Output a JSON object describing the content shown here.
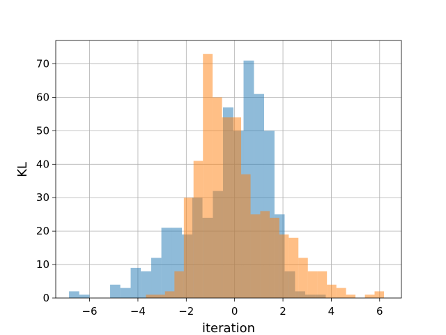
{
  "chart_data": {
    "type": "bar",
    "xlabel": "iteration",
    "ylabel": "KL",
    "xlim": [
      -7.4,
      6.9
    ],
    "ylim": [
      0,
      77
    ],
    "xticks": [
      -6,
      -4,
      -2,
      0,
      2,
      4,
      6
    ],
    "xtick_labels": [
      "−6",
      "−4",
      "−2",
      "0",
      "2",
      "4",
      "6"
    ],
    "yticks": [
      0,
      10,
      20,
      30,
      40,
      50,
      60,
      70
    ],
    "ytick_labels": [
      "0",
      "10",
      "20",
      "30",
      "40",
      "50",
      "60",
      "70"
    ],
    "grid": true,
    "series": [
      {
        "color": "#1f77b4",
        "opacity": 0.5,
        "bins": [
          [
            -6.85,
            -6.43,
            2
          ],
          [
            -6.43,
            -6.0,
            1
          ],
          [
            -5.15,
            -4.73,
            4
          ],
          [
            -4.73,
            -4.3,
            3
          ],
          [
            -4.3,
            -3.88,
            9
          ],
          [
            -3.88,
            -3.45,
            8
          ],
          [
            -3.45,
            -3.03,
            12
          ],
          [
            -3.03,
            -2.6,
            21
          ],
          [
            -2.6,
            -2.18,
            21
          ],
          [
            -2.18,
            -1.75,
            19
          ],
          [
            -1.75,
            -1.33,
            30
          ],
          [
            -1.33,
            -0.9,
            24
          ],
          [
            -0.9,
            -0.48,
            32
          ],
          [
            -0.48,
            -0.05,
            57
          ],
          [
            -0.05,
            0.37,
            50
          ],
          [
            0.37,
            0.8,
            71
          ],
          [
            0.8,
            1.22,
            61
          ],
          [
            1.22,
            1.65,
            50
          ],
          [
            1.65,
            2.07,
            25
          ],
          [
            2.07,
            2.5,
            8
          ],
          [
            2.5,
            2.92,
            2
          ],
          [
            2.92,
            3.35,
            1
          ],
          [
            3.35,
            3.77,
            1
          ]
        ]
      },
      {
        "color": "#ff7f0e",
        "opacity": 0.5,
        "bins": [
          [
            -3.67,
            -3.28,
            1
          ],
          [
            -3.28,
            -2.88,
            1
          ],
          [
            -2.88,
            -2.49,
            2
          ],
          [
            -2.49,
            -2.1,
            8
          ],
          [
            -2.1,
            -1.7,
            30
          ],
          [
            -1.7,
            -1.31,
            41
          ],
          [
            -1.31,
            -0.91,
            73
          ],
          [
            -0.91,
            -0.52,
            60
          ],
          [
            -0.52,
            -0.12,
            54
          ],
          [
            -0.12,
            0.27,
            54
          ],
          [
            0.27,
            0.66,
            37
          ],
          [
            0.66,
            1.06,
            25
          ],
          [
            1.06,
            1.45,
            26
          ],
          [
            1.45,
            1.85,
            24
          ],
          [
            1.85,
            2.24,
            19
          ],
          [
            2.24,
            2.64,
            18
          ],
          [
            2.64,
            3.03,
            12
          ],
          [
            3.03,
            3.42,
            8
          ],
          [
            3.42,
            3.82,
            8
          ],
          [
            3.82,
            4.21,
            4
          ],
          [
            4.21,
            4.61,
            3
          ],
          [
            4.61,
            5.0,
            1
          ],
          [
            5.0,
            5.39,
            0
          ],
          [
            5.39,
            5.79,
            1
          ],
          [
            5.79,
            6.18,
            2
          ]
        ]
      }
    ]
  }
}
